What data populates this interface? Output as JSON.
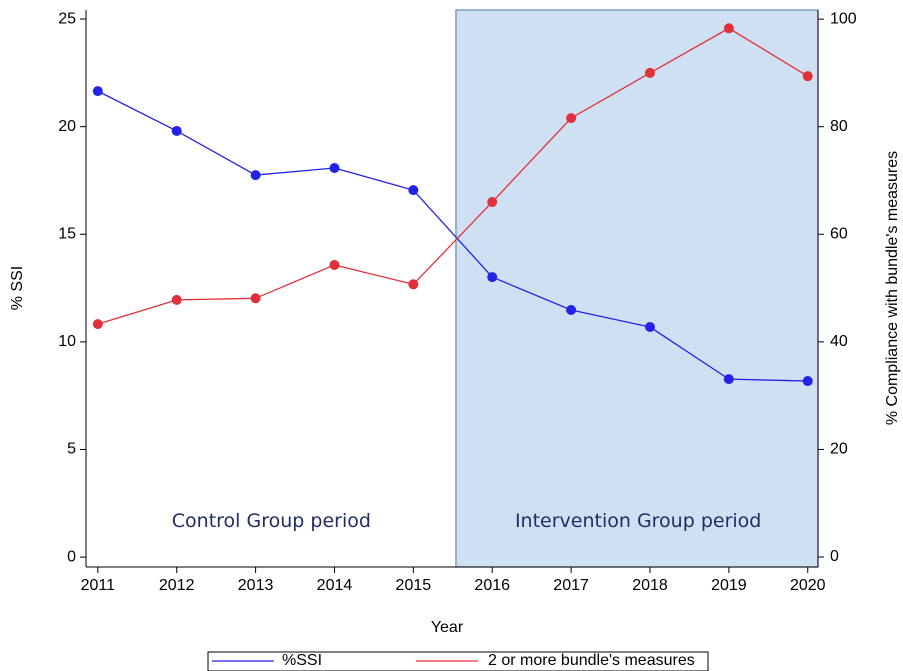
{
  "chart_data": {
    "type": "line",
    "x_label": "Year",
    "y_label": "% SSI",
    "y2_label": "% Compliance with bundle's measures",
    "x": [
      2011,
      2012,
      2013,
      2014,
      2015,
      2016,
      2017,
      2018,
      2019,
      2020
    ],
    "series": [
      {
        "name": "%SSI",
        "color": "#2323e8",
        "values": [
          21.65,
          19.8,
          17.75,
          18.08,
          17.05,
          13.01,
          11.48,
          10.69,
          8.27,
          8.18
        ]
      },
      {
        "name": "2 or more bundle's measures",
        "color": "#e0303a",
        "axis": "y2",
        "values": [
          43.3,
          47.8,
          48.1,
          54.3,
          50.7,
          66.0,
          81.6,
          90.0,
          98.3,
          89.4
        ]
      }
    ],
    "xlim": [
      2010.85,
      2020.13
    ],
    "xticks": [
      2011,
      2012,
      2013,
      2014,
      2015,
      2016,
      2017,
      2018,
      2019,
      2020
    ],
    "ylim": [
      -0.46,
      25.42
    ],
    "yticks": [
      0,
      5,
      10,
      15,
      20,
      25
    ],
    "y2lim": [
      -1.86,
      101.7
    ],
    "y2ticks": [
      0,
      20,
      40,
      60,
      80,
      100
    ],
    "shaded_region": [
      2015.54,
      2020.13
    ],
    "annotations": [
      {
        "text": "Control Group period",
        "x": 2013.2,
        "y": 1.65
      },
      {
        "text": "Intervention Group period",
        "x": 2017.85,
        "y": 1.65
      }
    ],
    "legend": "bottom"
  }
}
